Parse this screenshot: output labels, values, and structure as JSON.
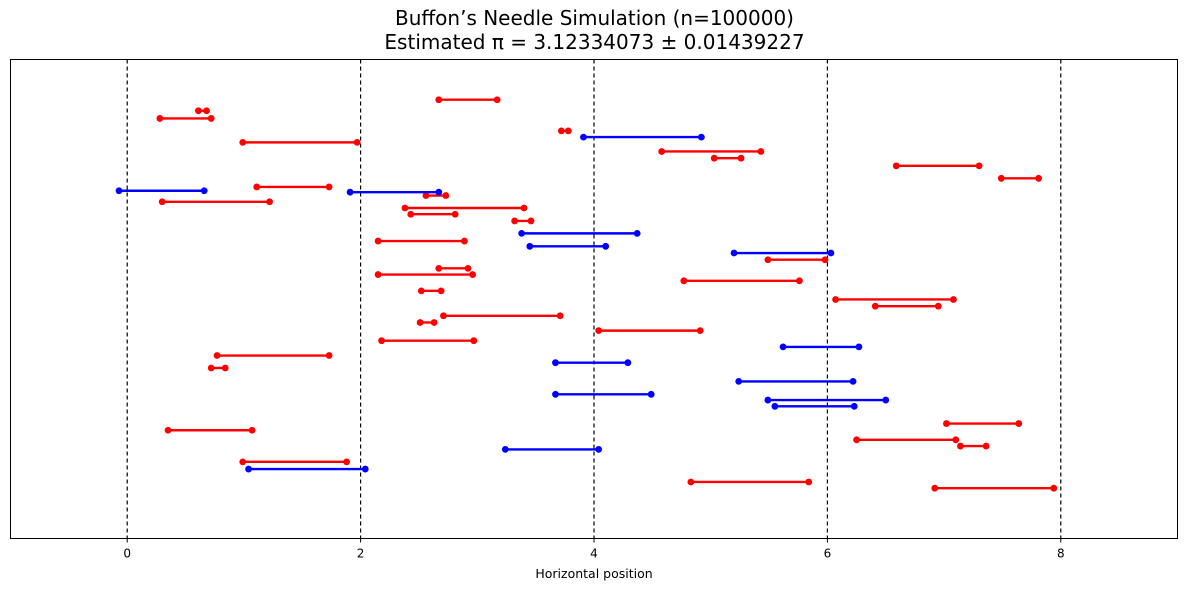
{
  "chart_data": {
    "type": "line",
    "title_line1": "Buffon’s Needle Simulation (n=100000)",
    "title_line2": "Estimated π = 3.12334073 ± 0.01439227",
    "xlabel": "Horizontal position",
    "ylabel": "",
    "xlim": [
      -1,
      9
    ],
    "ylim": [
      0,
      1
    ],
    "x_ticks": [
      0,
      2,
      4,
      6,
      8
    ],
    "y_axis_visible": false,
    "grid": false,
    "vertical_lines": {
      "x": [
        0,
        2,
        4,
        6,
        8
      ],
      "style": "dashed",
      "color": "#000000"
    },
    "colors": {
      "crossing": "#0000ff",
      "not_crossing": "#ff0000"
    },
    "series": [
      {
        "name": "",
        "color": "#ff0000",
        "segments": [
          [
            2.67,
            3.17,
            0.916
          ],
          [
            0.61,
            0.68,
            0.893
          ],
          [
            0.28,
            0.72,
            0.877
          ],
          [
            3.72,
            3.78,
            0.851
          ],
          [
            0.99,
            1.97,
            0.827
          ],
          [
            4.58,
            5.43,
            0.808
          ],
          [
            5.03,
            5.26,
            0.794
          ],
          [
            6.59,
            7.3,
            0.778
          ],
          [
            7.49,
            7.81,
            0.752
          ],
          [
            1.11,
            1.73,
            0.734
          ],
          [
            2.56,
            2.73,
            0.716
          ],
          [
            0.3,
            1.22,
            0.703
          ],
          [
            2.38,
            3.4,
            0.69
          ],
          [
            2.43,
            2.81,
            0.677
          ],
          [
            3.32,
            3.46,
            0.663
          ],
          [
            2.15,
            2.89,
            0.621
          ],
          [
            5.49,
            5.98,
            0.582
          ],
          [
            2.67,
            2.92,
            0.564
          ],
          [
            2.15,
            2.96,
            0.551
          ],
          [
            4.77,
            5.76,
            0.538
          ],
          [
            2.52,
            2.69,
            0.517
          ],
          [
            6.07,
            7.08,
            0.499
          ],
          [
            6.41,
            6.95,
            0.485
          ],
          [
            2.71,
            3.71,
            0.465
          ],
          [
            2.51,
            2.63,
            0.451
          ],
          [
            4.04,
            4.91,
            0.434
          ],
          [
            2.18,
            2.97,
            0.413
          ],
          [
            0.77,
            1.73,
            0.382
          ],
          [
            0.72,
            0.84,
            0.356
          ],
          [
            7.02,
            7.64,
            0.24
          ],
          [
            0.35,
            1.07,
            0.226
          ],
          [
            6.25,
            7.1,
            0.206
          ],
          [
            7.14,
            7.36,
            0.193
          ],
          [
            0.99,
            1.88,
            0.16
          ],
          [
            4.83,
            5.84,
            0.118
          ],
          [
            6.92,
            7.94,
            0.105
          ]
        ]
      },
      {
        "name": "",
        "color": "#0000ff",
        "segments": [
          [
            3.91,
            4.92,
            0.838
          ],
          [
            1.91,
            2.67,
            0.723
          ],
          [
            -0.07,
            0.66,
            0.726
          ],
          [
            3.38,
            4.37,
            0.637
          ],
          [
            3.45,
            4.1,
            0.61
          ],
          [
            5.2,
            6.03,
            0.596
          ],
          [
            5.62,
            6.27,
            0.4
          ],
          [
            3.67,
            4.29,
            0.367
          ],
          [
            5.24,
            6.22,
            0.328
          ],
          [
            3.67,
            4.49,
            0.301
          ],
          [
            5.49,
            6.5,
            0.289
          ],
          [
            5.55,
            6.23,
            0.276
          ],
          [
            3.24,
            4.04,
            0.186
          ],
          [
            1.04,
            2.04,
            0.145
          ]
        ]
      }
    ]
  }
}
